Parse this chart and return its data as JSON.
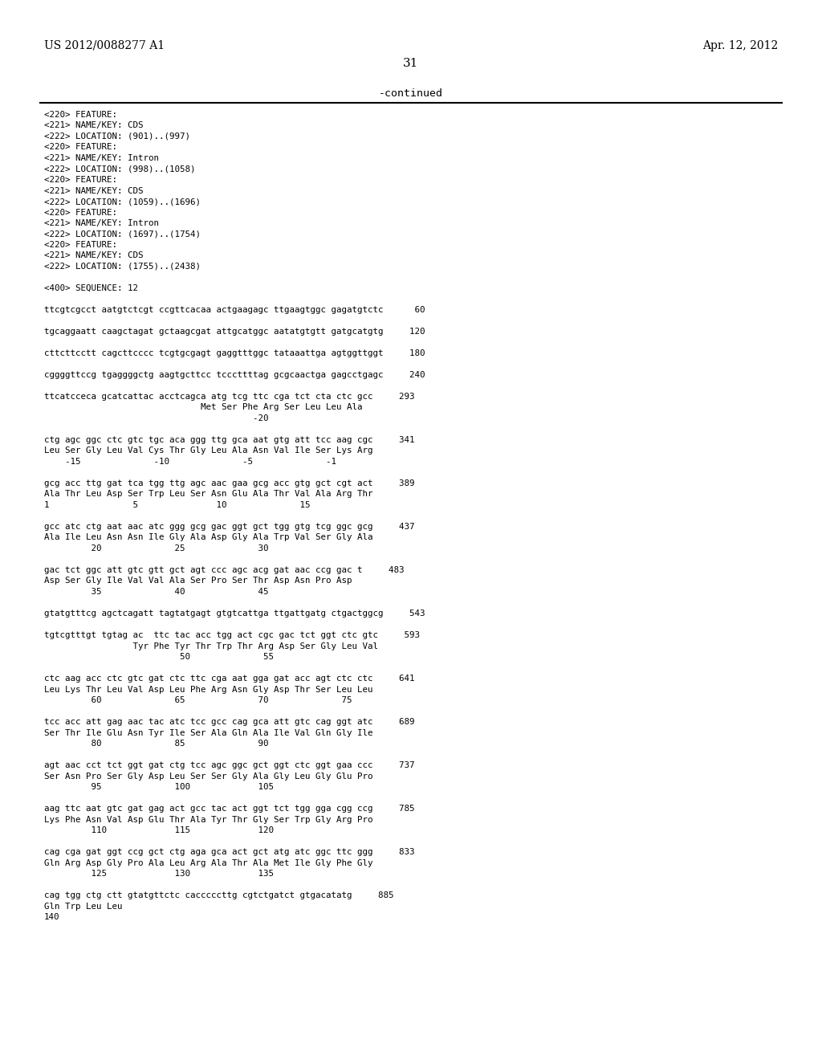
{
  "bg_color": "#ffffff",
  "header_left": "US 2012/0088277 A1",
  "header_right": "Apr. 12, 2012",
  "page_number": "31",
  "continued_label": "-continued",
  "monospace_lines": [
    "<220> FEATURE:",
    "<221> NAME/KEY: CDS",
    "<222> LOCATION: (901)..(997)",
    "<220> FEATURE:",
    "<221> NAME/KEY: Intron",
    "<222> LOCATION: (998)..(1058)",
    "<220> FEATURE:",
    "<221> NAME/KEY: CDS",
    "<222> LOCATION: (1059)..(1696)",
    "<220> FEATURE:",
    "<221> NAME/KEY: Intron",
    "<222> LOCATION: (1697)..(1754)",
    "<220> FEATURE:",
    "<221> NAME/KEY: CDS",
    "<222> LOCATION: (1755)..(2438)",
    "",
    "<400> SEQUENCE: 12",
    "",
    "ttcgtcgcct aatgtctcgt ccgttcacaa actgaagagc ttgaagtggc gagatgtctc      60",
    "",
    "tgcaggaatt caagctagat gctaagcgat attgcatggc aatatgtgtt gatgcatgtg     120",
    "",
    "cttcttcctt cagcttcccc tcgtgcgagt gaggtttggc tataaattga agtggttggt     180",
    "",
    "cggggttccg tgaggggctg aagtgcttcc tcccttttag gcgcaactga gagcctgagc     240",
    "",
    "ttcatcceca gcatcattac acctcagca atg tcg ttc cga tct cta ctc gcc     293",
    "                              Met Ser Phe Arg Ser Leu Leu Ala",
    "                                        -20",
    "",
    "ctg agc ggc ctc gtc tgc aca ggg ttg gca aat gtg att tcc aag cgc     341",
    "Leu Ser Gly Leu Val Cys Thr Gly Leu Ala Asn Val Ile Ser Lys Arg",
    "    -15              -10              -5              -1",
    "",
    "gcg acc ttg gat tca tgg ttg agc aac gaa gcg acc gtg gct cgt act     389",
    "Ala Thr Leu Asp Ser Trp Leu Ser Asn Glu Ala Thr Val Ala Arg Thr",
    "1                5               10              15",
    "",
    "gcc atc ctg aat aac atc ggg gcg gac ggt gct tgg gtg tcg ggc gcg     437",
    "Ala Ile Leu Asn Asn Ile Gly Ala Asp Gly Ala Trp Val Ser Gly Ala",
    "         20              25              30",
    "",
    "gac tct ggc att gtc gtt gct agt ccc agc acg gat aac ccg gac t     483",
    "Asp Ser Gly Ile Val Val Ala Ser Pro Ser Thr Asp Asn Pro Asp",
    "         35              40              45",
    "",
    "gtatgtttcg agctcagatt tagtatgagt gtgtcattga ttgattgatg ctgactggcg     543",
    "",
    "tgtcgtttgt tgtag ac  ttc tac acc tgg act cgc gac tct ggt ctc gtc     593",
    "                 Tyr Phe Tyr Thr Trp Thr Arg Asp Ser Gly Leu Val",
    "                          50              55",
    "",
    "ctc aag acc ctc gtc gat ctc ttc cga aat gga gat acc agt ctc ctc     641",
    "Leu Lys Thr Leu Val Asp Leu Phe Arg Asn Gly Asp Thr Ser Leu Leu",
    "         60              65              70              75",
    "",
    "tcc acc att gag aac tac atc tcc gcc cag gca att gtc cag ggt atc     689",
    "Ser Thr Ile Glu Asn Tyr Ile Ser Ala Gln Ala Ile Val Gln Gly Ile",
    "         80              85              90",
    "",
    "agt aac cct tct ggt gat ctg tcc agc ggc gct ggt ctc ggt gaa ccc     737",
    "Ser Asn Pro Ser Gly Asp Leu Ser Ser Gly Ala Gly Leu Gly Glu Pro",
    "         95              100             105",
    "",
    "aag ttc aat gtc gat gag act gcc tac act ggt tct tgg gga cgg ccg     785",
    "Lys Phe Asn Val Asp Glu Thr Ala Tyr Thr Gly Ser Trp Gly Arg Pro",
    "         110             115             120",
    "",
    "cag cga gat ggt ccg gct ctg aga gca act gct atg atc ggc ttc ggg     833",
    "Gln Arg Asp Gly Pro Ala Leu Arg Ala Thr Ala Met Ile Gly Phe Gly",
    "         125             130             135",
    "",
    "cag tgg ctg ctt gtatgttctc cacccccttg cgtctgatct gtgacatatg     885",
    "Gln Trp Leu Leu",
    "140"
  ]
}
